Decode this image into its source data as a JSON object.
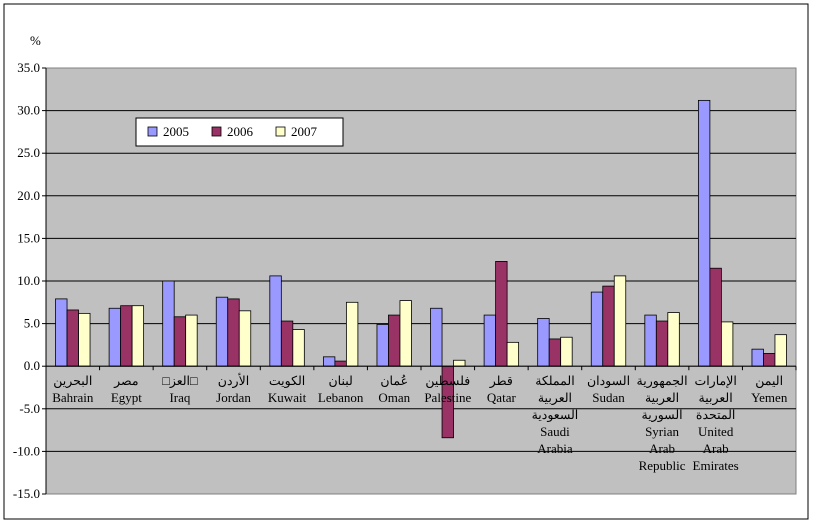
{
  "chart_data": {
    "type": "bar",
    "ylabel": "%",
    "ylim": [
      -15,
      35
    ],
    "yticks": [
      -15,
      -10,
      -5,
      0,
      5,
      10,
      15,
      20,
      25,
      30,
      35
    ],
    "ytick_labels": [
      "-15.0",
      "-10.0",
      "-5.0",
      "0.0",
      "5.0",
      "10.0",
      "15.0",
      "20.0",
      "25.0",
      "30.0",
      "35.0"
    ],
    "grid": true,
    "legend_position": "top-left",
    "categories": [
      {
        "ar": [
          "البحرين"
        ],
        "en": [
          "Bahrain"
        ]
      },
      {
        "ar": [
          "مصر"
        ],
        "en": [
          "Egypt"
        ]
      },
      {
        "ar": [
          "□العز□"
        ],
        "en": [
          "Iraq"
        ]
      },
      {
        "ar": [
          "الأردن"
        ],
        "en": [
          "Jordan"
        ]
      },
      {
        "ar": [
          "الكويت"
        ],
        "en": [
          "Kuwait"
        ]
      },
      {
        "ar": [
          "لبنان"
        ],
        "en": [
          "Lebanon"
        ]
      },
      {
        "ar": [
          "عُمان"
        ],
        "en": [
          "Oman"
        ]
      },
      {
        "ar": [
          "فلسطين"
        ],
        "en": [
          "Palestine"
        ]
      },
      {
        "ar": [
          "قطر"
        ],
        "en": [
          "Qatar"
        ]
      },
      {
        "ar": [
          "المملكة",
          "العربية",
          "السعودية"
        ],
        "en": [
          "Saudi",
          "Arabia"
        ]
      },
      {
        "ar": [
          "السودان"
        ],
        "en": [
          "Sudan"
        ]
      },
      {
        "ar": [
          "الجمهورية",
          "العربية",
          "السورية"
        ],
        "en": [
          "Syrian",
          "Arab",
          "Republic"
        ]
      },
      {
        "ar": [
          "الإمارات",
          "العربية",
          "المتحدة"
        ],
        "en": [
          "United",
          "Arab",
          "Emirates"
        ]
      },
      {
        "ar": [
          "اليمن"
        ],
        "en": [
          "Yemen"
        ]
      }
    ],
    "series": [
      {
        "name": "2005",
        "color": "#9999ff",
        "values": [
          7.9,
          6.8,
          10.0,
          8.1,
          10.6,
          1.1,
          4.9,
          6.8,
          6.0,
          5.6,
          8.7,
          6.0,
          31.2,
          2.0
        ]
      },
      {
        "name": "2006",
        "color": "#993366",
        "values": [
          6.6,
          7.1,
          5.8,
          7.9,
          5.3,
          0.6,
          6.0,
          -8.4,
          12.3,
          3.2,
          9.4,
          5.3,
          11.5,
          1.5
        ]
      },
      {
        "name": "2007",
        "color": "#ffffcc",
        "values": [
          6.2,
          7.1,
          6.0,
          6.5,
          4.3,
          7.5,
          7.7,
          0.7,
          2.8,
          3.4,
          10.6,
          6.3,
          5.2,
          3.7
        ]
      }
    ]
  }
}
